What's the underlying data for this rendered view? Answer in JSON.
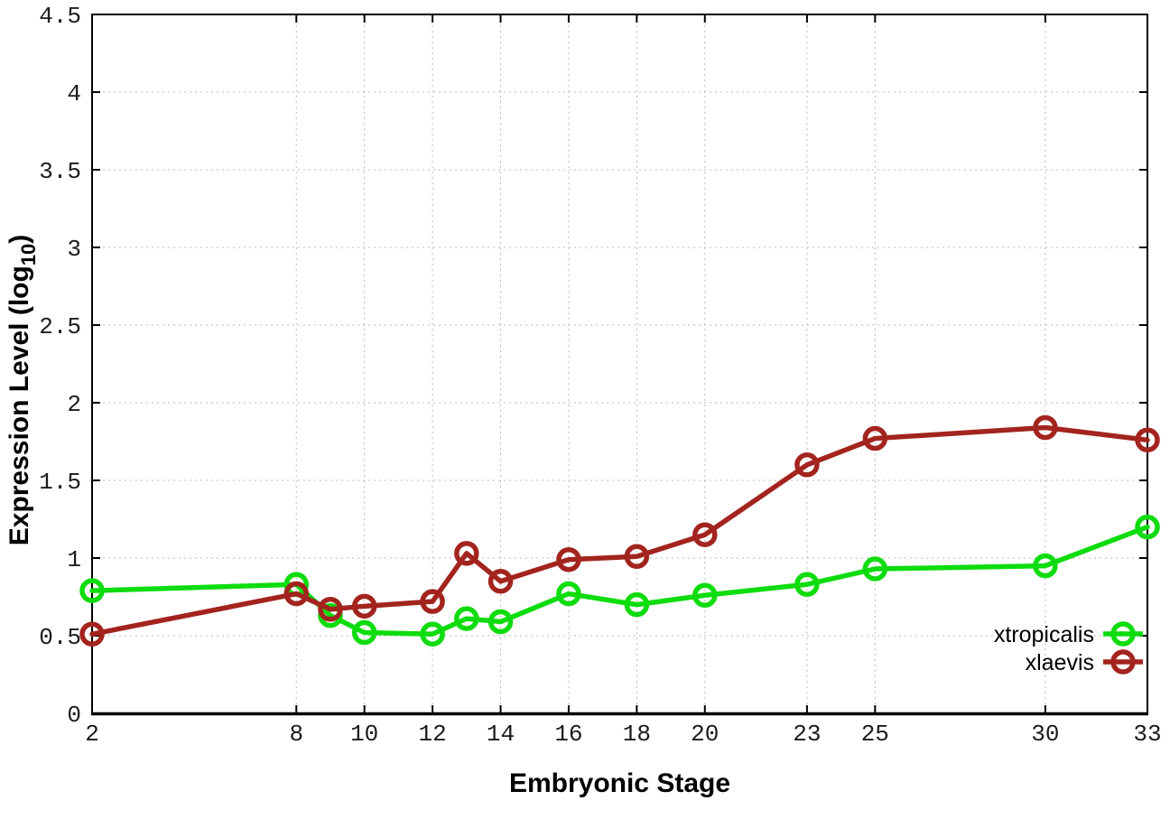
{
  "chart_data": {
    "type": "line",
    "title": "",
    "xlabel": "Embryonic Stage",
    "ylabel": "Expression Level (log10)",
    "ylabel_parts": {
      "main": "Expression Level (log",
      "sub": "10",
      "close": ")"
    },
    "x": [
      2,
      8,
      9,
      10,
      12,
      13,
      14,
      16,
      18,
      20,
      23,
      25,
      30,
      33
    ],
    "series": [
      {
        "name": "xtropicalis",
        "color": "#0edc0e",
        "values": [
          0.79,
          0.83,
          0.63,
          0.52,
          0.51,
          0.61,
          0.59,
          0.77,
          0.7,
          0.76,
          0.83,
          0.93,
          0.95,
          1.2
        ]
      },
      {
        "name": "xlaevis",
        "color": "#a3241e",
        "values": [
          0.51,
          0.77,
          0.67,
          0.69,
          0.72,
          1.03,
          0.85,
          0.99,
          1.01,
          1.15,
          1.6,
          1.77,
          1.84,
          1.76
        ]
      }
    ],
    "xlim": [
      2,
      33
    ],
    "ylim": [
      0,
      4.5
    ],
    "xticks": [
      2,
      8,
      10,
      12,
      14,
      16,
      18,
      20,
      23,
      25,
      30,
      33
    ],
    "xtick_labels": [
      "2",
      "8",
      "10",
      "12",
      "14",
      "16",
      "18",
      "20",
      "23",
      "25",
      "30",
      "33"
    ],
    "yticks": [
      0,
      0.5,
      1,
      1.5,
      2,
      2.5,
      3,
      3.5,
      4,
      4.5
    ],
    "ytick_labels": [
      "0",
      "0.5",
      "1",
      "1.5",
      "2",
      "2.5",
      "3",
      "3.5",
      "4",
      "4.5"
    ],
    "grid": true,
    "legend_position": "bottom-right",
    "legend_entries": [
      "xtropicalis",
      "xlaevis"
    ],
    "colors": {
      "background": "#ffffff",
      "border": "#000000",
      "grid": "#bababa",
      "tick_text": "#1c1c1c",
      "xtropicalis": "#0edc0e",
      "xlaevis": "#a3241e"
    }
  }
}
